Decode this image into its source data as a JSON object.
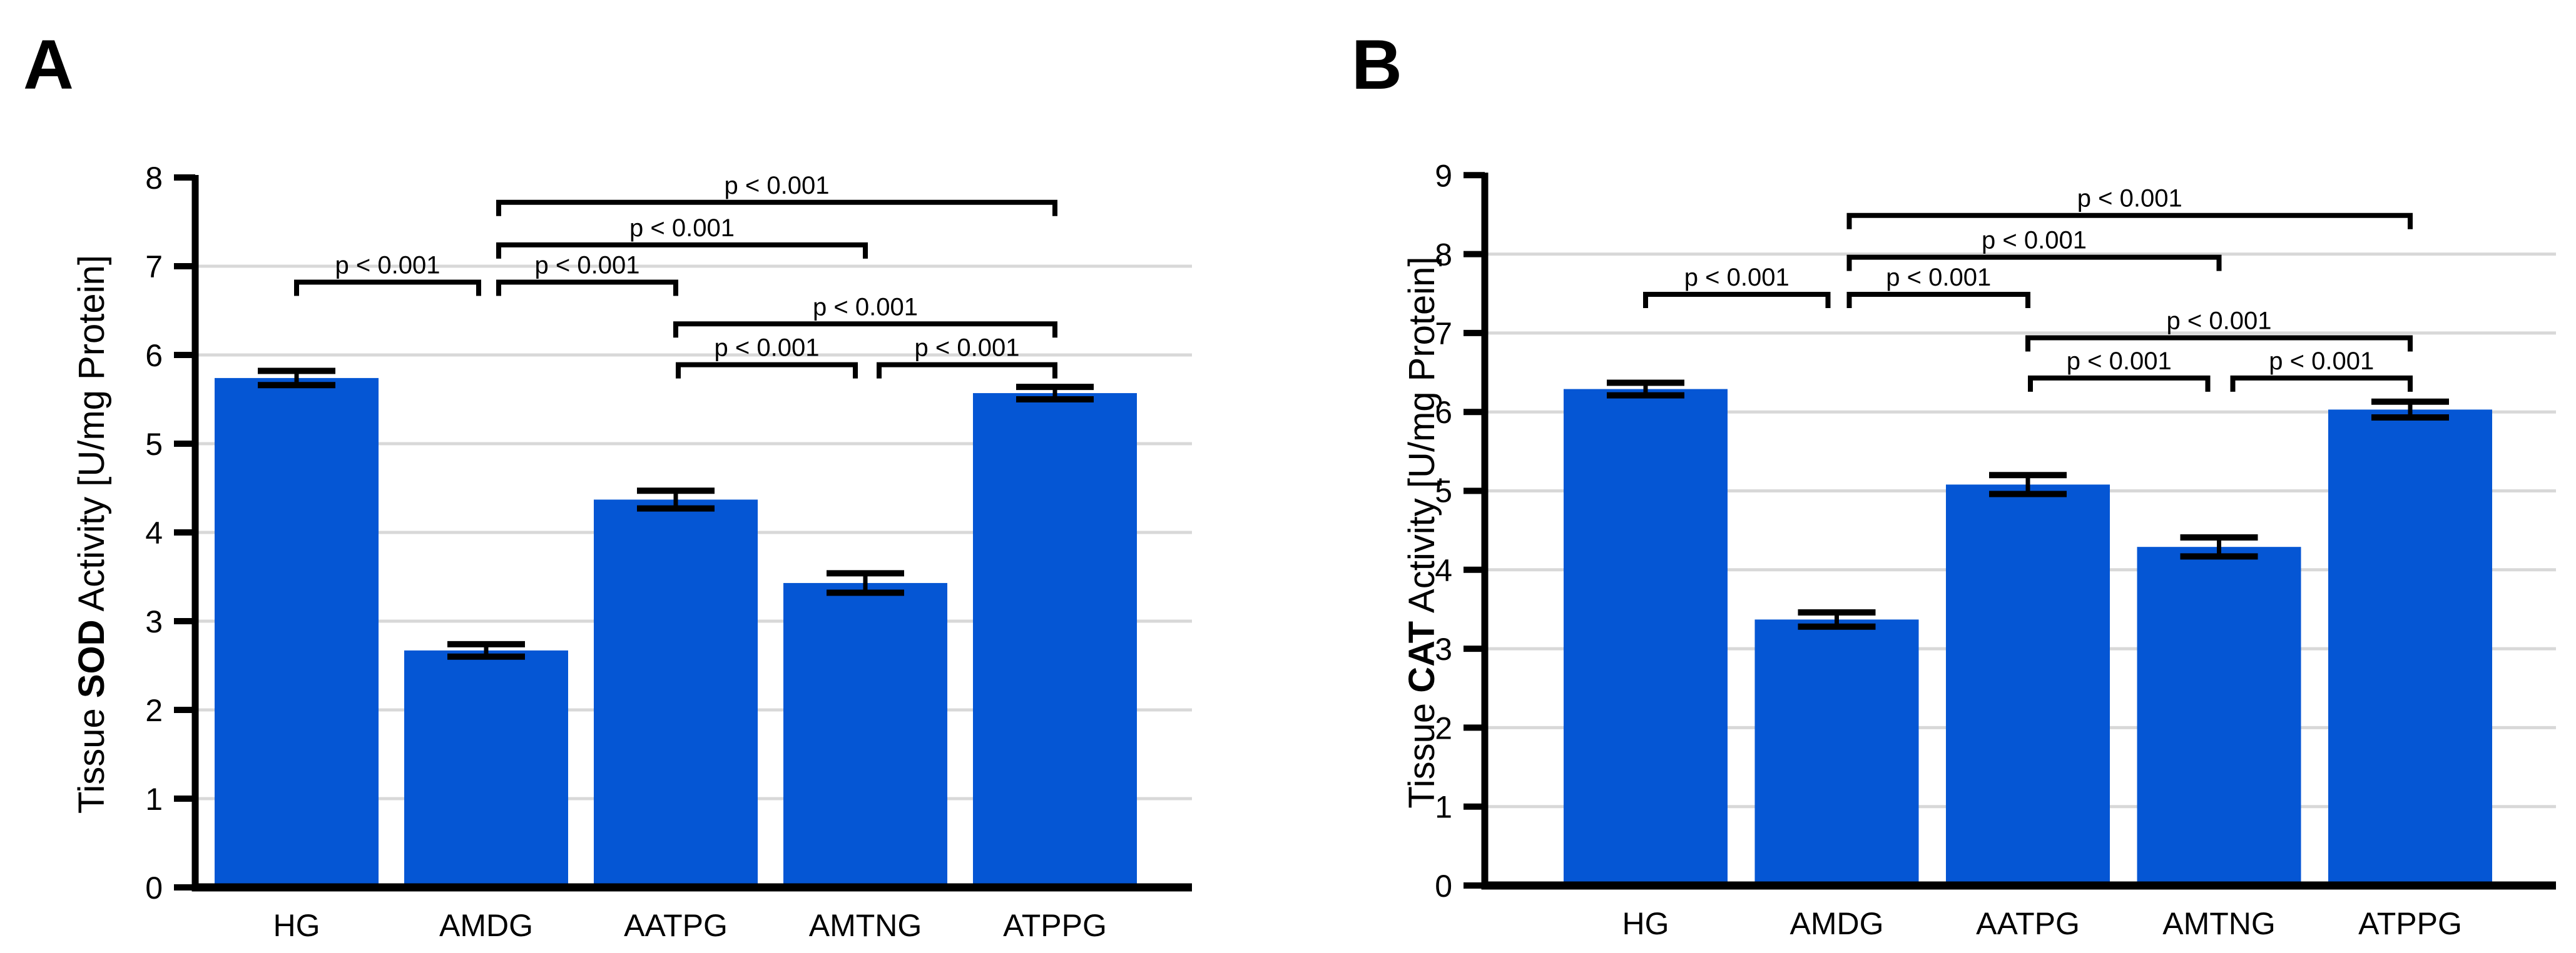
{
  "figure": {
    "background": "#ffffff",
    "bar_color": "#0556d4",
    "grid_color": "#d8d8d8",
    "axis_color": "#000000",
    "error_bar_color": "#000000",
    "significance_label": "p < 0.001"
  },
  "chart_data": [
    {
      "type": "bar",
      "panel_letter": "A",
      "title": "",
      "xlabel": "",
      "ylabel": "Tissue SOD Activity [U/mg Protein]",
      "ylabel_parts": {
        "prefix": "Tissue ",
        "enzyme": "SOD",
        "suffix": " Activity [U/mg Protein]"
      },
      "ylim": [
        0,
        8
      ],
      "ytick_step": 1,
      "grid": true,
      "legend_position": "none",
      "categories": [
        "HG",
        "AMDG",
        "AATPG",
        "AMTNG",
        "ATPPG"
      ],
      "values": [
        5.74,
        2.67,
        4.37,
        3.43,
        5.57
      ],
      "errors": [
        0.08,
        0.07,
        0.1,
        0.11,
        0.07
      ],
      "comparisons": [
        {
          "from": "HG",
          "to": "AMDG",
          "label": "p < 0.001",
          "level": 6.82,
          "x1_off": 0,
          "x2_off": -12
        },
        {
          "from": "AMDG",
          "to": "AATPG",
          "label": "p < 0.001",
          "level": 6.82,
          "x1_off": 20,
          "x2_off": 0
        },
        {
          "from": "AMDG",
          "to": "AMTNG",
          "label": "p < 0.001",
          "level": 7.24,
          "x1_off": 20,
          "x2_off": 0
        },
        {
          "from": "AMDG",
          "to": "ATPPG",
          "label": "p < 0.001",
          "level": 7.72,
          "x1_off": 20,
          "x2_off": 0
        },
        {
          "from": "AATPG",
          "to": "AMTNG",
          "label": "p < 0.001",
          "level": 5.89,
          "x1_off": 4,
          "x2_off": -16
        },
        {
          "from": "AMTNG",
          "to": "ATPPG",
          "label": "p < 0.001",
          "level": 5.89,
          "x1_off": 22,
          "x2_off": 0
        },
        {
          "from": "AATPG",
          "to": "ATPPG",
          "label": "p < 0.001",
          "level": 6.35,
          "x1_off": 0,
          "x2_off": 0
        }
      ]
    },
    {
      "type": "bar",
      "panel_letter": "B",
      "title": "",
      "xlabel": "",
      "ylabel": "Tissue CAT Activity [U/mg Protein]",
      "ylabel_parts": {
        "prefix": "Tissue ",
        "enzyme": "CAT",
        "suffix": " Activity [U/mg Protein]"
      },
      "ylim": [
        0,
        9
      ],
      "ytick_step": 1,
      "grid": true,
      "legend_position": "none",
      "categories": [
        "HG",
        "AMDG",
        "AATPG",
        "AMTNG",
        "ATPPG"
      ],
      "values": [
        6.29,
        3.37,
        5.08,
        4.29,
        6.03
      ],
      "errors": [
        0.08,
        0.09,
        0.12,
        0.12,
        0.1
      ],
      "comparisons": [
        {
          "from": "HG",
          "to": "AMDG",
          "label": "p < 0.001",
          "level": 7.49,
          "x1_off": 0,
          "x2_off": -14
        },
        {
          "from": "AMDG",
          "to": "AATPG",
          "label": "p < 0.001",
          "level": 7.49,
          "x1_off": 20,
          "x2_off": 0
        },
        {
          "from": "AMDG",
          "to": "AMTNG",
          "label": "p < 0.001",
          "level": 7.96,
          "x1_off": 20,
          "x2_off": 0
        },
        {
          "from": "AMDG",
          "to": "ATPPG",
          "label": "p < 0.001",
          "level": 8.49,
          "x1_off": 20,
          "x2_off": 0
        },
        {
          "from": "AATPG",
          "to": "AMTNG",
          "label": "p < 0.001",
          "level": 6.43,
          "x1_off": 4,
          "x2_off": -18
        },
        {
          "from": "AMTNG",
          "to": "ATPPG",
          "label": "p < 0.001",
          "level": 6.43,
          "x1_off": 22,
          "x2_off": 0
        },
        {
          "from": "AATPG",
          "to": "ATPPG",
          "label": "p < 0.001",
          "level": 6.94,
          "x1_off": 0,
          "x2_off": 0
        }
      ]
    }
  ]
}
